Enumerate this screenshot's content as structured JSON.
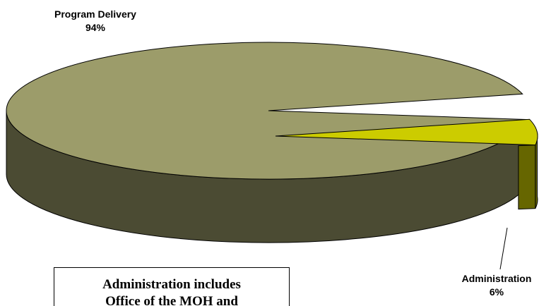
{
  "colors": {
    "program_delivery_top": "#9c9c6a",
    "program_delivery_side": "#4b4b33",
    "administration_top": "#cccc00",
    "administration_side": "#666600",
    "outline": "#000000"
  },
  "chart_data": {
    "type": "pie",
    "style": "3d",
    "slices": [
      {
        "label": "Program Delivery",
        "value": 94,
        "value_text": "94%"
      },
      {
        "label": "Administration",
        "value": 6,
        "value_text": "6%",
        "exploded": true
      }
    ]
  },
  "note": {
    "line1": "Administration includes",
    "line2": "Office of the MOH and"
  }
}
